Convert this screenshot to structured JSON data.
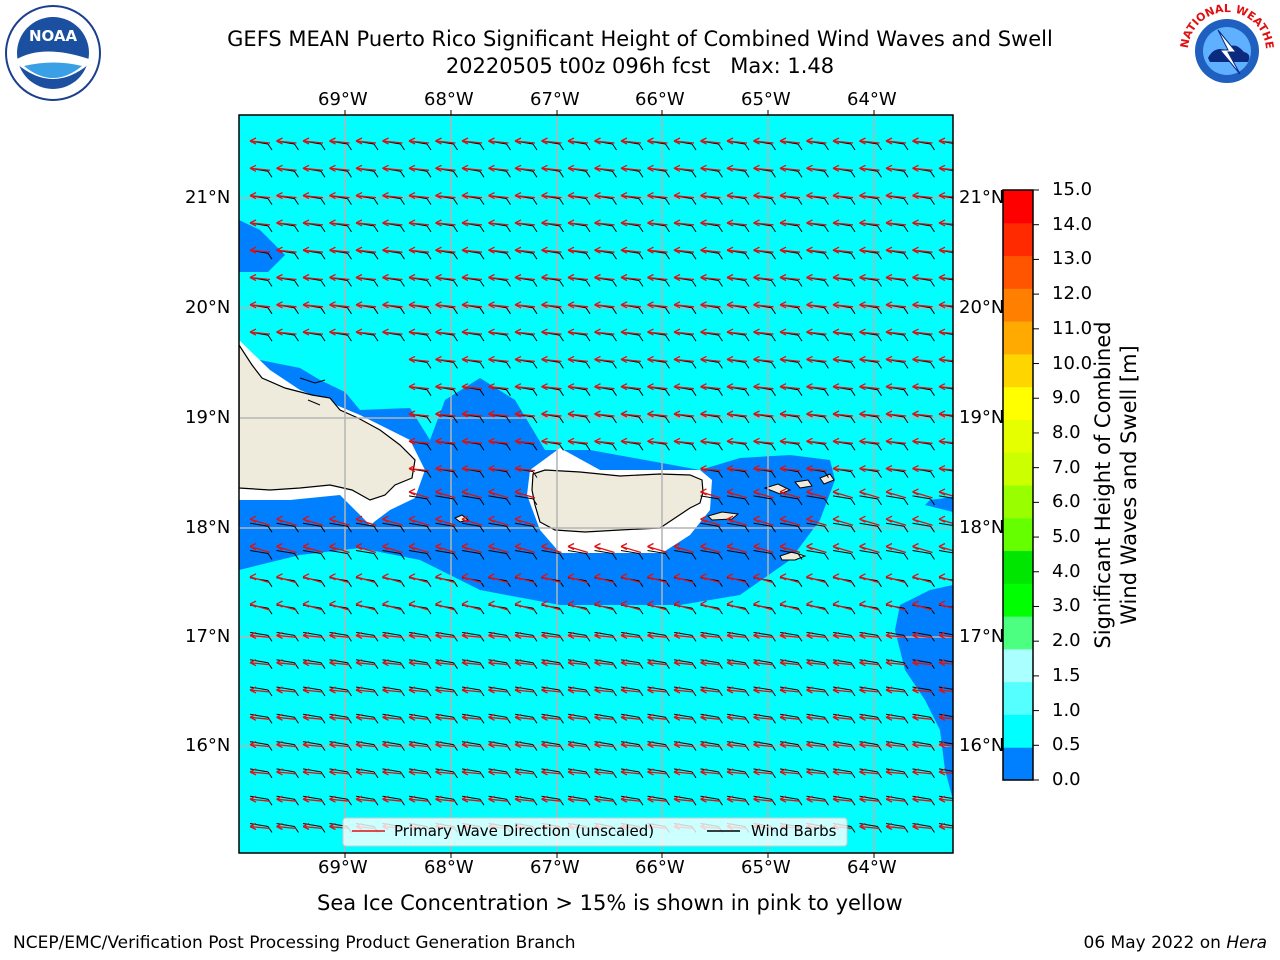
{
  "header": {
    "title_line1": "GEFS MEAN Puerto Rico Significant Height of Combined Wind Waves and Swell",
    "title_line2": "20220505 t00z 096h fcst   Max: 1.48"
  },
  "logos": {
    "left": {
      "icon": "noaa-logo",
      "text": "NOAA"
    },
    "right": {
      "icon": "nws-logo",
      "text": "NATIONAL WEATHER SERVICE"
    }
  },
  "map": {
    "lon_labels": [
      "69°W",
      "68°W",
      "67°W",
      "66°W",
      "65°W",
      "64°W"
    ],
    "lat_labels": [
      "21°N",
      "20°N",
      "19°N",
      "18°N",
      "17°N",
      "16°N"
    ],
    "legend": {
      "primary_wave": "Primary Wave Direction (unscaled)",
      "wind_barbs": "Wind Barbs"
    },
    "colors": {
      "land": "#efebdc",
      "sea_low": "#00ffff",
      "sea_mid": "#0080ff",
      "wave_arrow": "#ff0000",
      "barb": "#000000"
    }
  },
  "colorbar": {
    "label_line1": "Significant Height of Combined",
    "label_line2": "Wind Waves and Swell [m]",
    "ticks": [
      "15.0",
      "14.0",
      "13.0",
      "12.0",
      "11.0",
      "10.0",
      "9.0",
      "8.0",
      "7.0",
      "6.0",
      "5.0",
      "4.0",
      "3.0",
      "2.0",
      "1.5",
      "1.0",
      "0.5",
      "0.0"
    ],
    "colors": [
      "#ff0000",
      "#ff2a00",
      "#ff5500",
      "#ff8000",
      "#ffaa00",
      "#ffd500",
      "#ffff00",
      "#e6ff00",
      "#ccff00",
      "#99ff00",
      "#66ff00",
      "#00e600",
      "#00ff00",
      "#4dff80",
      "#aaffff",
      "#55ffff",
      "#00ffff",
      "#0080ff",
      "#0000ff"
    ]
  },
  "caption": "Sea Ice Concentration > 15% is shown in pink to yellow",
  "footer": {
    "left": "NCEP/EMC/Verification Post Processing Product Generation Branch",
    "right_date": "06 May 2022 on ",
    "right_host": "Hera"
  }
}
